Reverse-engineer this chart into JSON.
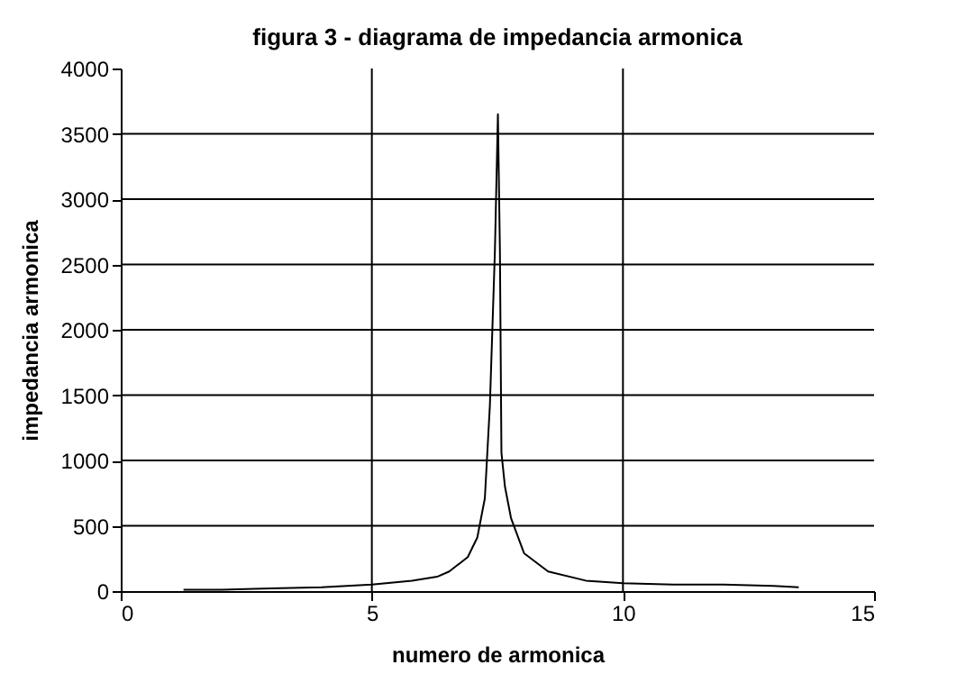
{
  "chart_data": {
    "type": "line",
    "title": "figura 3 - diagrama de impedancia armonica",
    "xlabel": "numero de armonica",
    "ylabel": "impedancia armonica",
    "x": [
      1.25,
      2,
      3,
      4,
      5,
      5.8,
      6.3,
      6.54,
      6.91,
      7.1,
      7.25,
      7.35,
      7.45,
      7.51,
      7.55,
      7.58,
      7.65,
      7.77,
      8.03,
      8.51,
      9.26,
      10,
      11,
      12,
      13,
      13.5
    ],
    "series": [
      {
        "color": "#000000",
        "values": [
          10,
          10,
          20,
          30,
          50,
          80,
          110,
          150,
          260,
          410,
          710,
          1420,
          2600,
          3650,
          2600,
          1060,
          800,
          560,
          290,
          150,
          80,
          60,
          50,
          50,
          40,
          30
        ]
      }
    ],
    "xlim": [
      0,
      15
    ],
    "xticks": [
      0,
      5,
      10,
      15
    ],
    "ylim": [
      0,
      4000
    ],
    "yticks": [
      0,
      500,
      1000,
      1500,
      2000,
      2500,
      3000,
      3500,
      4000
    ],
    "grid": true,
    "marker": "none",
    "line_style": "solid"
  }
}
